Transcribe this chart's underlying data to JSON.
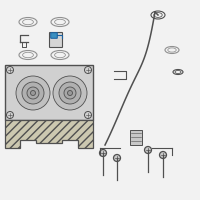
{
  "bg_color": "#f2f2f2",
  "lc": "#909090",
  "dc": "#505050",
  "hl": "#3a8fc0",
  "fig_size": [
    2.0,
    2.0
  ],
  "dpi": 100
}
